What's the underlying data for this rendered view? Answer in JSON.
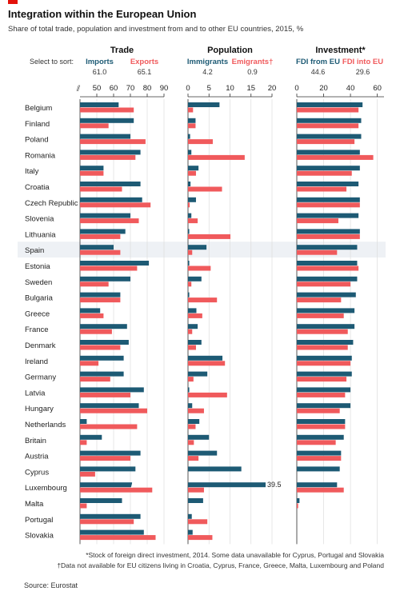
{
  "header": {
    "title": "Integration within the European Union",
    "subtitle": "Share of total trade, population and investment from and to other EU countries, 2015, %"
  },
  "sort_label": "Select to sort:",
  "colors": {
    "blue": "#1d5a74",
    "red": "#f05a5c",
    "zebra": "#eef1f5",
    "axis": "#333333",
    "grid": "#dddddd"
  },
  "chart_data": {
    "type": "bar",
    "categories": [
      "Belgium",
      "Finland",
      "Poland",
      "Romania",
      "Italy",
      "Croatia",
      "Czech Republic",
      "Slovenia",
      "Lithuania",
      "Spain",
      "Estonia",
      "Sweden",
      "Bulgaria",
      "Greece",
      "France",
      "Denmark",
      "Ireland",
      "Germany",
      "Latvia",
      "Hungary",
      "Netherlands",
      "Britain",
      "Austria",
      "Cyprus",
      "Luxembourg",
      "Malta",
      "Portugal",
      "Slovakia"
    ],
    "highlight_category": "Spain",
    "panels": [
      {
        "title": "Trade",
        "xlim": [
          40,
          90
        ],
        "ticks": [
          50,
          60,
          70,
          80,
          90
        ],
        "axis_break": true,
        "series": [
          {
            "name": "Imports",
            "average": "61.0",
            "color": "#1d5a74",
            "values": [
              63,
              72,
              70,
              76,
              54,
              76,
              77,
              70,
              67,
              60,
              81,
              70,
              64,
              52,
              68,
              69,
              66,
              66,
              78,
              75,
              44,
              53,
              76,
              73,
              71,
              65,
              76,
              78
            ]
          },
          {
            "name": "Exports",
            "average": "65.1",
            "color": "#f05a5c",
            "values": [
              72,
              57,
              79,
              73,
              54,
              65,
              82,
              75,
              64,
              64,
              74,
              57,
              64,
              54,
              59,
              64,
              51,
              58,
              70,
              80,
              74,
              44,
              70,
              49,
              83,
              44,
              72,
              85
            ]
          }
        ]
      },
      {
        "title": "Population",
        "xlim": [
          0,
          20
        ],
        "ticks": [
          0,
          5,
          10,
          15,
          20
        ],
        "series": [
          {
            "name": "Immigrants",
            "average": "4.2",
            "color": "#1d5a74",
            "values": [
              7.5,
              1.8,
              0.5,
              0.8,
              2.5,
              0.6,
              1.9,
              0.8,
              0.3,
              4.4,
              0.3,
              3.2,
              0.3,
              2.0,
              2.3,
              3.2,
              8.2,
              4.6,
              0.3,
              1.0,
              2.7,
              5.0,
              6.9,
              12.7,
              39.5,
              3.6,
              0.9,
              1.1
            ]
          },
          {
            "name": "Emigrants†",
            "average": "0.9",
            "color": "#f05a5c",
            "values": [
              1.2,
              1.8,
              5.9,
              13.5,
              1.9,
              8.1,
              0.4,
              2.3,
              10.1,
              1.0,
              5.4,
              0.8,
              6.9,
              3.4,
              1.0,
              1.9,
              8.8,
              1.3,
              9.3,
              3.8,
              1.8,
              1.4,
              2.5,
              0,
              3.8,
              0,
              4.6,
              5.8
            ]
          }
        ],
        "overflow_label": "39.5"
      },
      {
        "title": "Investment*",
        "xlim": [
          0,
          65
        ],
        "ticks": [
          0,
          20,
          40,
          60
        ],
        "series": [
          {
            "name": "FDI from EU",
            "average": "44.6",
            "color": "#1d5a74",
            "values": [
              49,
              48,
              48,
              47,
              47,
              46,
              47,
              46,
              47,
              45,
              45,
              45,
              44,
              43,
              43,
              42,
              41,
              41,
              40,
              40,
              36,
              35,
              33,
              32,
              30,
              2,
              null,
              null
            ]
          },
          {
            "name": "FDI into EU",
            "average": "29.6",
            "color": "#f05a5c",
            "values": [
              46,
              46,
              43,
              57,
              41,
              37,
              47,
              31,
              47,
              30,
              46,
              40,
              33,
              35,
              38,
              38,
              40,
              37,
              36,
              32,
              36,
              29,
              33,
              null,
              35,
              1,
              null,
              null
            ]
          }
        ]
      }
    ]
  },
  "footnotes": [
    "*Stock of foreign direct investment, 2014. Some data unavailable for Cyprus, Portugal and Slovakia",
    "†Data not available for EU citizens living in Croatia, Cyprus, France, Greece, Malta, Luxembourg and Poland"
  ],
  "source": "Source: Eurostat"
}
